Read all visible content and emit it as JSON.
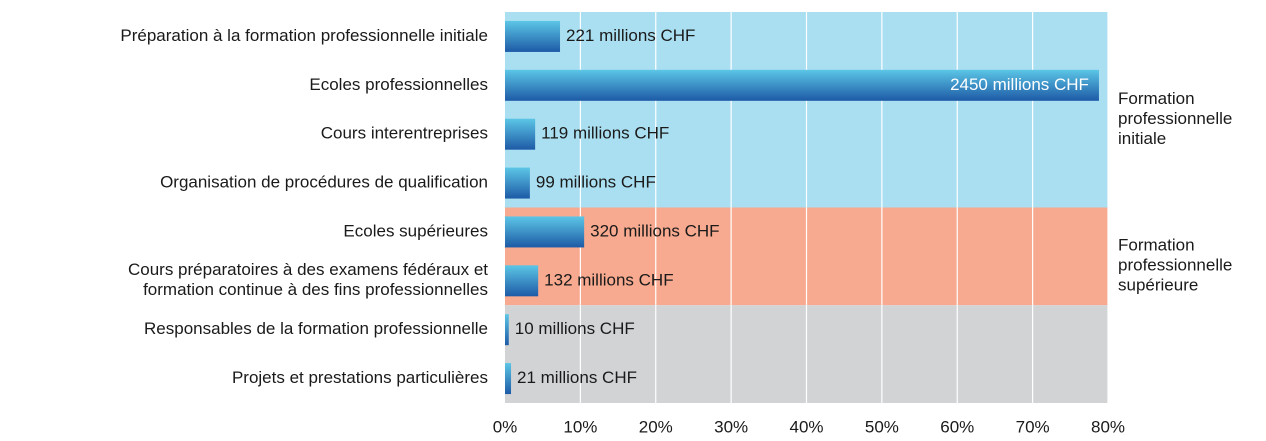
{
  "chart_data": {
    "type": "bar",
    "orientation": "horizontal",
    "xlim": [
      0,
      80
    ],
    "xticks": [
      {
        "value": 0,
        "label": "0%"
      },
      {
        "value": 10,
        "label": "10%"
      },
      {
        "value": 20,
        "label": "20%"
      },
      {
        "value": 30,
        "label": "30%"
      },
      {
        "value": 40,
        "label": "40%"
      },
      {
        "value": 50,
        "label": "50%"
      },
      {
        "value": 60,
        "label": "60%"
      },
      {
        "value": 70,
        "label": "70%"
      },
      {
        "value": 80,
        "label": "80%"
      }
    ],
    "grid": true,
    "bar_color_light": "#5cc6e6",
    "bar_color_dark": "#1d5aa6",
    "groups": [
      {
        "name": "Formation\nprofessionnelle\ninitiale",
        "color": "#aadff1",
        "categories": [
          "Préparation à la formation professionnelle initiale",
          "Ecoles professionnelles",
          "Cours interentreprises",
          "Organisation de procédures de qualification"
        ],
        "values": [
          7.3,
          78.8,
          4.0,
          3.3
        ],
        "value_labels": [
          "221 millions CHF",
          "2450 millions CHF",
          "119 millions CHF",
          "99 millions CHF"
        ]
      },
      {
        "name": "Formation\nprofessionnelle\nsupérieure",
        "color": "#f7aa8f",
        "categories": [
          "Ecoles supérieures",
          "Cours préparatoires à des examens fédéraux et\nformation continue à des fins professionnelles"
        ],
        "values": [
          10.5,
          4.4
        ],
        "value_labels": [
          "320 millions CHF",
          "132 millions CHF"
        ]
      },
      {
        "color": "#d2d3d5",
        "categories": [
          "Responsables de la formation professionnelle",
          "Projets et prestations particulières"
        ],
        "values": [
          0.5,
          0.8
        ],
        "value_labels": [
          "10 millions CHF",
          "21 millions CHF"
        ]
      }
    ]
  }
}
